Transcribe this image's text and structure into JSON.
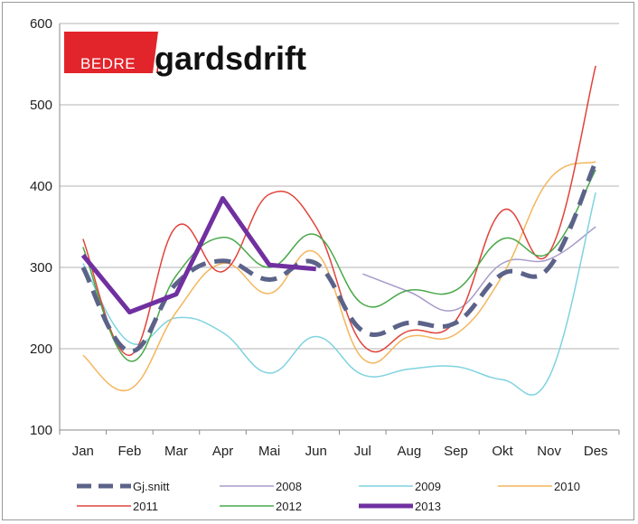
{
  "logo": {
    "left_text": "BEDRE",
    "right_text": "gardsdrift",
    "accent_color": "#e2242b"
  },
  "chart_data": {
    "type": "line",
    "categories": [
      "Jan",
      "Feb",
      "Mar",
      "Apr",
      "Mai",
      "Jun",
      "Jul",
      "Aug",
      "Sep",
      "Okt",
      "Nov",
      "Des"
    ],
    "ylim": [
      100,
      600
    ],
    "yticks": [
      100,
      200,
      300,
      400,
      500,
      600
    ],
    "grid": true,
    "legend_position": "bottom",
    "series": [
      {
        "name": "Gj.snitt",
        "color": "#5b6389",
        "width": 5,
        "dash": "18 10",
        "values": [
          300,
          197,
          280,
          308,
          285,
          305,
          222,
          232,
          232,
          292,
          300,
          430
        ]
      },
      {
        "name": "2008",
        "color": "#a89cc8",
        "width": 1.5,
        "dash": "",
        "values": [
          null,
          null,
          null,
          null,
          null,
          null,
          292,
          270,
          248,
          305,
          310,
          350
        ]
      },
      {
        "name": "2009",
        "color": "#7fd3df",
        "width": 1.5,
        "dash": "",
        "values": [
          305,
          208,
          238,
          220,
          170,
          215,
          168,
          175,
          178,
          162,
          165,
          392
        ]
      },
      {
        "name": "2010",
        "color": "#f4b65c",
        "width": 1.5,
        "dash": "",
        "values": [
          192,
          150,
          245,
          305,
          268,
          318,
          188,
          215,
          218,
          290,
          408,
          430
        ]
      },
      {
        "name": "2011",
        "color": "#e1433a",
        "width": 1.5,
        "dash": "",
        "values": [
          335,
          192,
          350,
          295,
          390,
          350,
          205,
          222,
          235,
          370,
          318,
          548
        ]
      },
      {
        "name": "2012",
        "color": "#4aa84a",
        "width": 1.5,
        "dash": "",
        "values": [
          325,
          185,
          290,
          337,
          300,
          340,
          255,
          272,
          272,
          335,
          318,
          420
        ]
      },
      {
        "name": "2013",
        "color": "#7030a0",
        "width": 5,
        "dash": "",
        "values": [
          315,
          245,
          267,
          385,
          303,
          298,
          null,
          null,
          null,
          null,
          null,
          null
        ]
      }
    ]
  }
}
